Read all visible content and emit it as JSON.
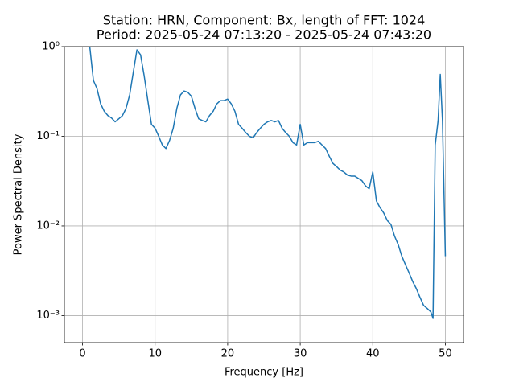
{
  "chart_data": {
    "type": "line",
    "title": "Station: HRN, Component: Bx, length of FFT: 1024",
    "subtitle": "Period: 2025-05-24 07:13:20 - 2025-05-24 07:43:20",
    "x_label": "Frequency [Hz]",
    "y_label": "Power Spectral Density",
    "x": [
      1,
      1.5,
      2,
      2.5,
      3,
      3.5,
      4,
      4.5,
      5,
      5.5,
      6,
      6.5,
      7,
      7.5,
      8,
      8.5,
      9,
      9.5,
      10,
      10.5,
      11,
      11.5,
      12,
      12.5,
      13,
      13.5,
      14,
      14.5,
      15,
      15.5,
      16,
      16.5,
      17,
      17.5,
      18,
      18.5,
      19,
      19.5,
      20,
      20.5,
      21,
      21.5,
      22,
      22.5,
      23,
      23.5,
      24,
      24.5,
      25,
      25.5,
      26,
      26.5,
      27,
      27.5,
      28,
      28.5,
      29,
      29.5,
      30,
      30.5,
      31,
      31.5,
      32,
      32.5,
      33,
      33.5,
      34,
      34.5,
      35,
      35.5,
      36,
      36.5,
      37,
      37.5,
      38,
      38.5,
      39,
      39.5,
      40,
      40.5,
      41,
      41.5,
      42,
      42.5,
      43,
      43.5,
      44,
      44.5,
      45,
      45.5,
      46,
      46.5,
      47,
      47.5,
      48,
      48.3,
      48.6,
      49,
      49.3,
      49.6,
      50
    ],
    "values": [
      1.0,
      0.42,
      0.34,
      0.23,
      0.19,
      0.17,
      0.16,
      0.145,
      0.157,
      0.17,
      0.205,
      0.29,
      0.52,
      0.92,
      0.81,
      0.47,
      0.25,
      0.136,
      0.123,
      0.1,
      0.08,
      0.073,
      0.09,
      0.123,
      0.205,
      0.29,
      0.32,
      0.31,
      0.28,
      0.205,
      0.157,
      0.15,
      0.145,
      0.17,
      0.19,
      0.23,
      0.25,
      0.25,
      0.26,
      0.23,
      0.19,
      0.136,
      0.123,
      0.11,
      0.1,
      0.096,
      0.11,
      0.123,
      0.136,
      0.145,
      0.15,
      0.145,
      0.15,
      0.123,
      0.11,
      0.1,
      0.085,
      0.08,
      0.136,
      0.08,
      0.085,
      0.085,
      0.085,
      0.088,
      0.08,
      0.073,
      0.06,
      0.05,
      0.046,
      0.042,
      0.04,
      0.037,
      0.036,
      0.036,
      0.034,
      0.032,
      0.028,
      0.026,
      0.04,
      0.019,
      0.016,
      0.014,
      0.0115,
      0.0104,
      0.0077,
      0.0062,
      0.0046,
      0.0037,
      0.003,
      0.0024,
      0.002,
      0.0016,
      0.0013,
      0.0012,
      0.0011,
      0.00093,
      0.08,
      0.15,
      0.49,
      0.15,
      0.0046
    ],
    "color": "#1f77b4",
    "xlim": [
      -2.5,
      52.5
    ],
    "xticks": [
      0,
      10,
      20,
      30,
      40,
      50
    ],
    "ylim": [
      0.0005,
      1
    ],
    "yscale": "log",
    "yticks": [
      {
        "value": 0.001,
        "label": "10⁻³"
      },
      {
        "value": 0.01,
        "label": "10⁻²"
      },
      {
        "value": 0.1,
        "label": "10⁻¹"
      },
      {
        "value": 1,
        "label": "10⁰"
      }
    ],
    "grid": true
  }
}
